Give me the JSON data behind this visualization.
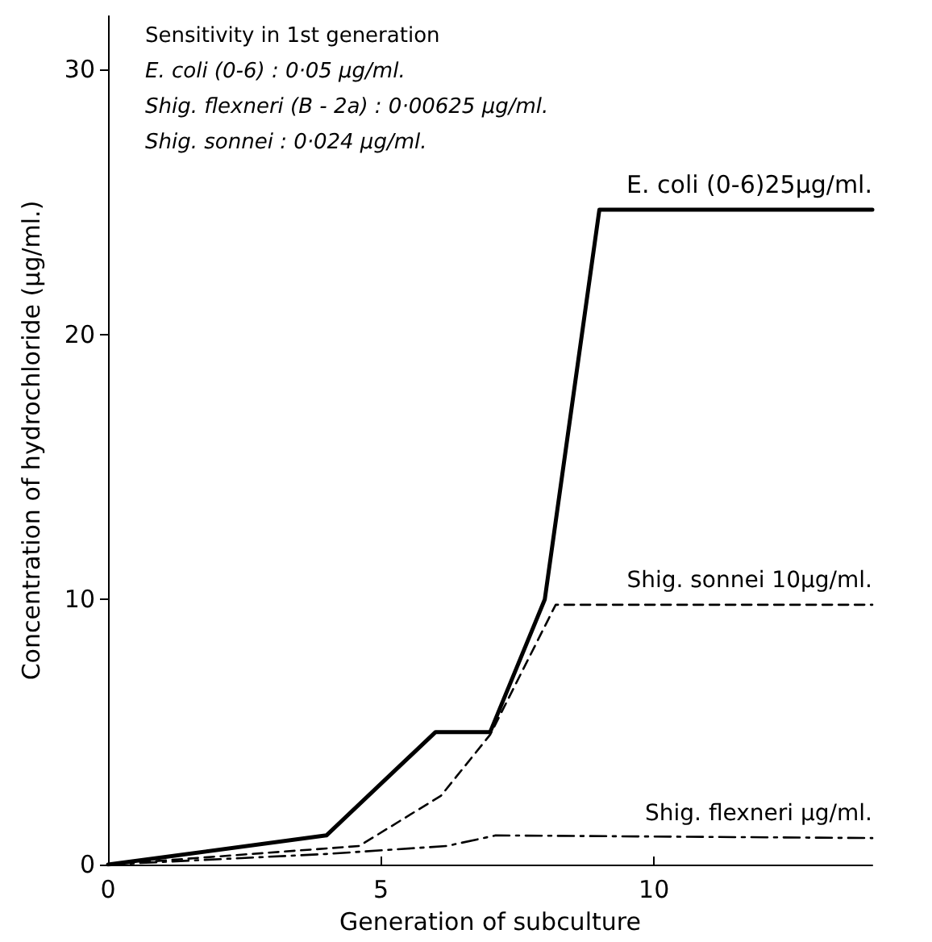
{
  "chart_data": {
    "type": "line",
    "xlabel": "Generation of subculture",
    "ylabel": "Concentration of hydrochloride (µg/ml.)",
    "xlim": [
      0,
      14
    ],
    "xticks": [
      0,
      5,
      10
    ],
    "ylim": [
      0,
      32
    ],
    "yticks": [
      0,
      10,
      20,
      30
    ],
    "grid": false,
    "legend": false,
    "marker": "none",
    "annotations": [
      "Sensitivity in 1st generation",
      "E. coli (0-6) : 0·05 µg/ml.",
      "Shig. flexneri (B - 2a) : 0·00625 µg/ml.",
      "Shig. sonnei : 0·024 µg/ml."
    ],
    "series": [
      {
        "name": "E. coli (0-6)25µg/ml.",
        "color": "#000000",
        "line_style": "solid",
        "x": [
          0,
          4,
          6,
          7,
          8,
          9,
          14
        ],
        "values": [
          0,
          1.1,
          5,
          5,
          10,
          24.7,
          24.7
        ]
      },
      {
        "name": "Shig. sonnei 10µg/ml.",
        "color": "#000000",
        "line_style": "dashed",
        "x": [
          0,
          4.6,
          6.1,
          7,
          8.2,
          14
        ],
        "values": [
          0,
          0.7,
          2.6,
          4.9,
          9.8,
          9.8
        ]
      },
      {
        "name": "Shig. flexneri µg/ml.",
        "color": "#000000",
        "line_style": "dashdot",
        "x": [
          0,
          4,
          6.2,
          7.1,
          14
        ],
        "values": [
          0,
          0.4,
          0.7,
          1.1,
          1
        ]
      }
    ]
  }
}
